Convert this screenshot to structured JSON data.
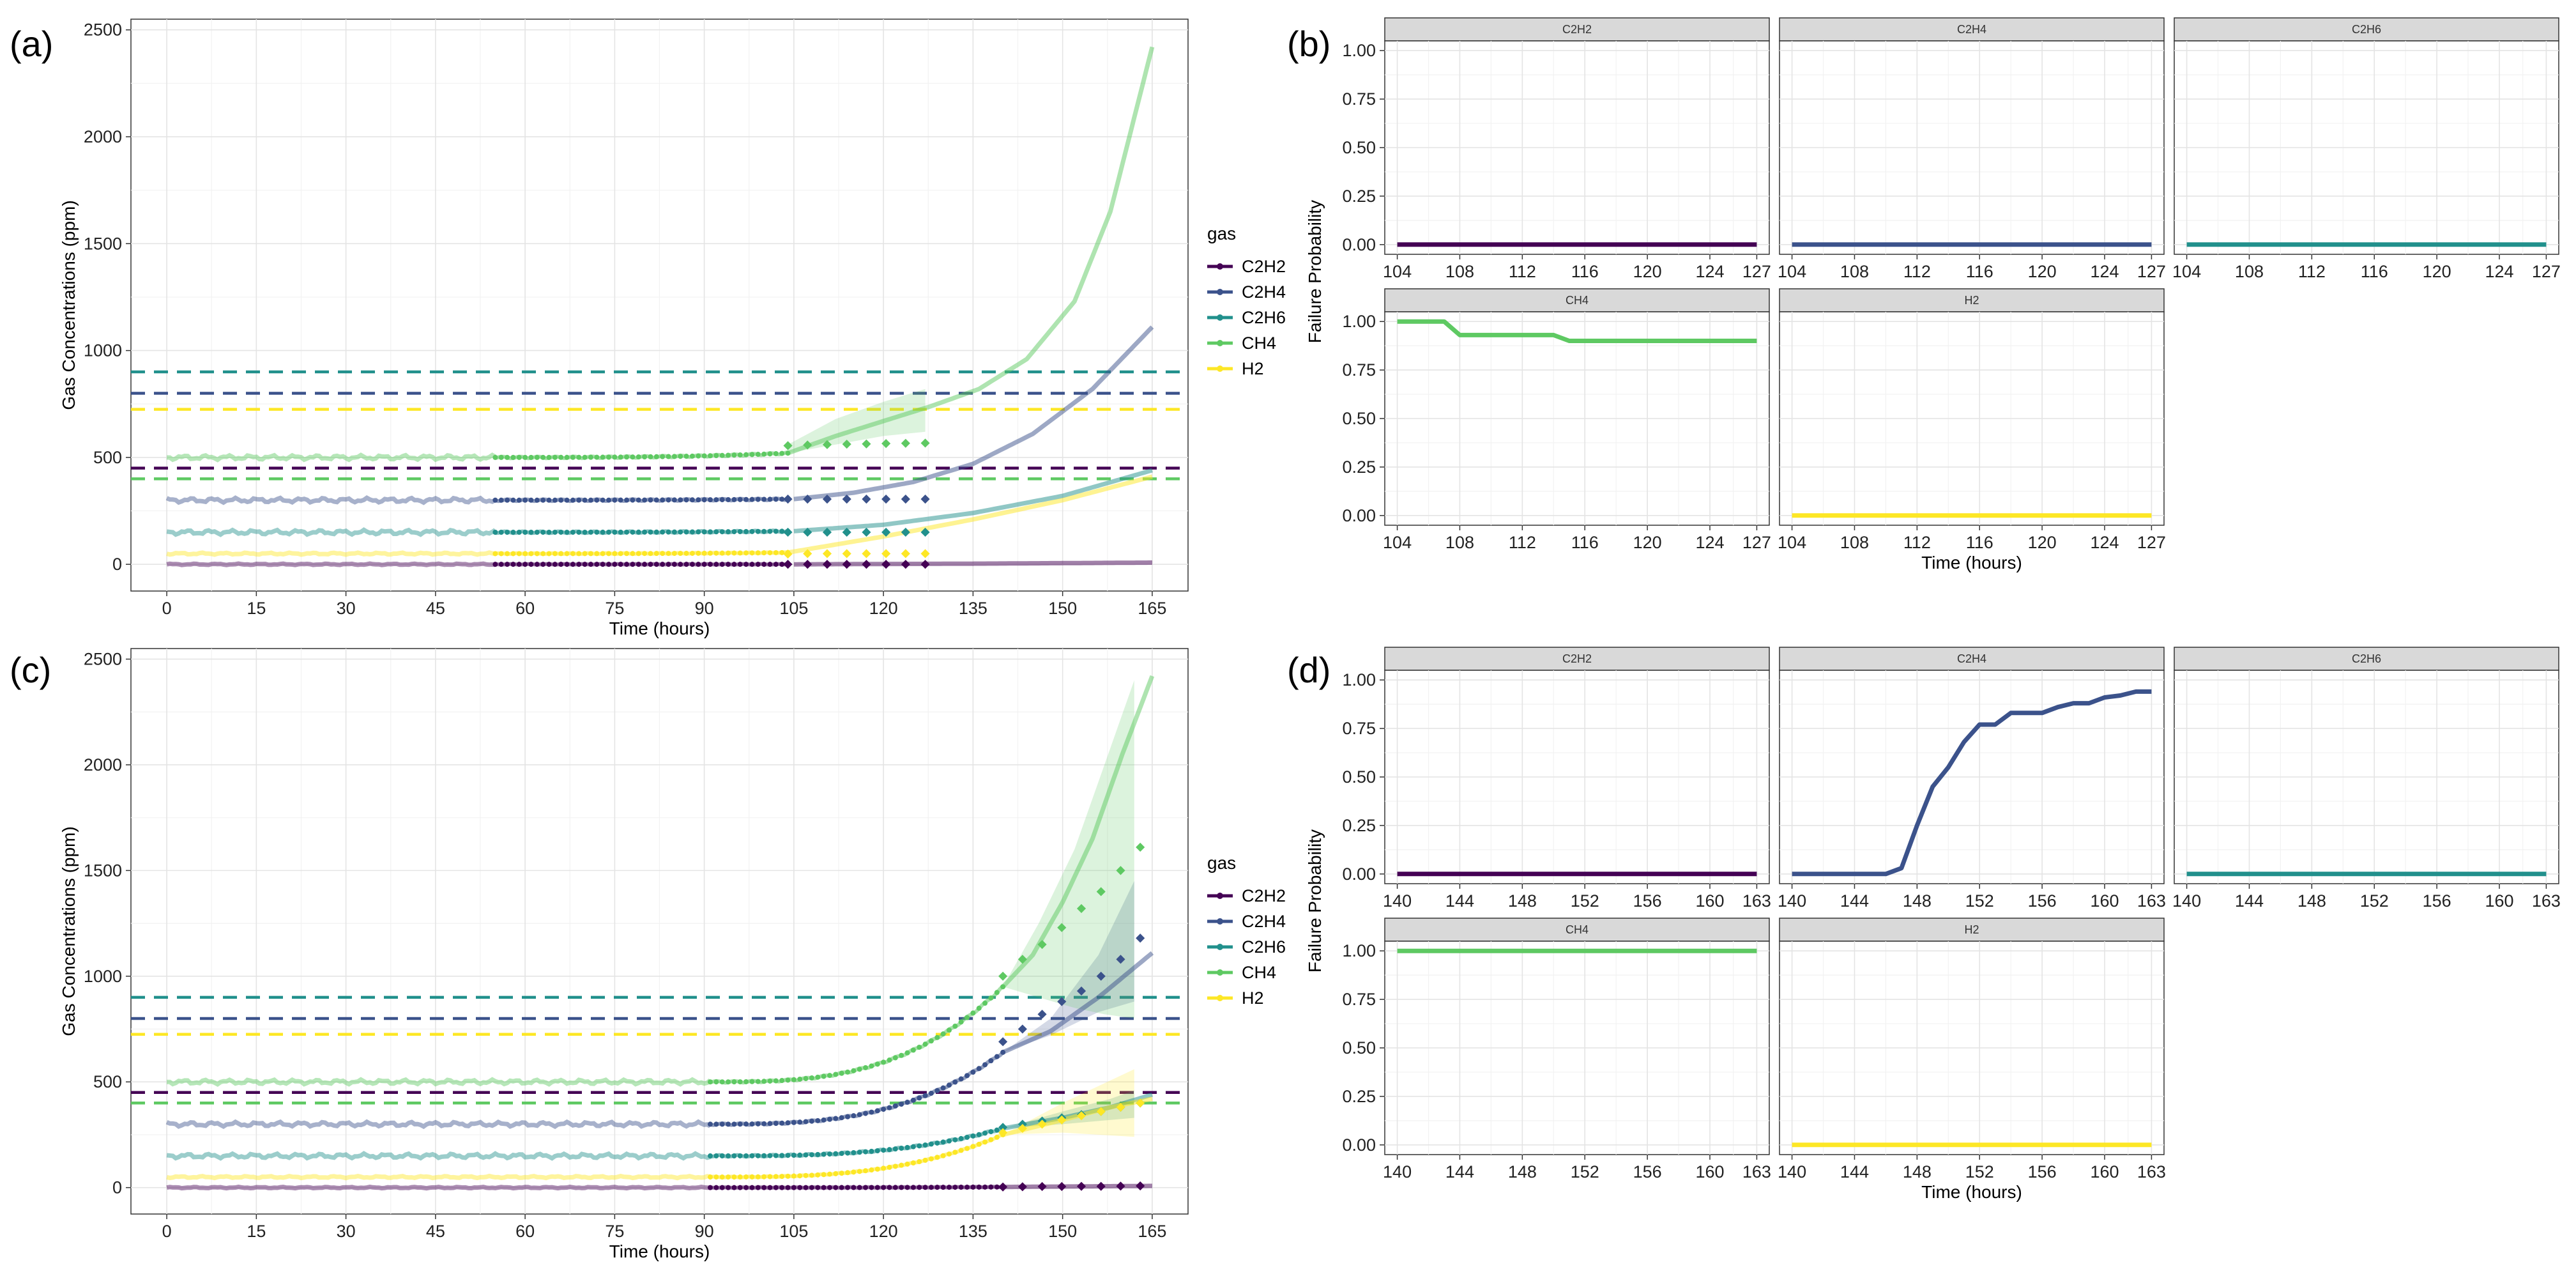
{
  "gases": [
    "C2H2",
    "C2H4",
    "C2H6",
    "CH4",
    "H2"
  ],
  "colors": {
    "C2H2": "#440154",
    "C2H4": "#3b528b",
    "C2H6": "#21908c",
    "CH4": "#5ec962",
    "H2": "#fde725"
  },
  "legend": {
    "title": "gas"
  },
  "chart_data": [
    {
      "panel": "(a)",
      "type": "line",
      "title": "",
      "xlabel": "Time (hours)",
      "ylabel": "Gas Concentrations (ppm)",
      "xlim": [
        -6,
        171
      ],
      "ylim": [
        -125,
        2550
      ],
      "xticks": [
        0,
        15,
        30,
        45,
        60,
        75,
        90,
        105,
        120,
        135,
        150,
        165
      ],
      "yticks": [
        0,
        500,
        1000,
        1500,
        2000,
        2500
      ],
      "grid": true,
      "legend_position": "right",
      "thresholds": [
        {
          "gas": "C2H6",
          "value": 900
        },
        {
          "gas": "C2H4",
          "value": 800
        },
        {
          "gas": "H2",
          "value": 725
        },
        {
          "gas": "C2H2",
          "value": 450
        },
        {
          "gas": "CH4",
          "value": 400
        }
      ],
      "history_end": 55,
      "observed_range": [
        55,
        104
      ],
      "forecast_start": 104,
      "forecast_points_end": 127,
      "series": [
        {
          "name": "C2H2",
          "baseline": 0,
          "fit": [
            [
              105,
              0
            ],
            [
              135,
              3
            ],
            [
              165,
              8
            ]
          ],
          "forecast_points": [
            0,
            0,
            0,
            0,
            0,
            0,
            0,
            0
          ],
          "band": []
        },
        {
          "name": "C2H4",
          "baseline": 300,
          "fit": [
            [
              105,
              305
            ],
            [
              115,
              335
            ],
            [
              125,
              385
            ],
            [
              135,
              470
            ],
            [
              145,
              610
            ],
            [
              155,
              820
            ],
            [
              165,
              1110
            ]
          ],
          "forecast_points": [
            305,
            305,
            305,
            305,
            305,
            305,
            305,
            305
          ],
          "band": []
        },
        {
          "name": "C2H6",
          "baseline": 150,
          "fit": [
            [
              105,
              155
            ],
            [
              120,
              185
            ],
            [
              135,
              240
            ],
            [
              150,
              320
            ],
            [
              165,
              440
            ]
          ],
          "forecast_points": [
            150,
            150,
            150,
            150,
            150,
            150,
            150,
            150
          ],
          "band": []
        },
        {
          "name": "CH4",
          "baseline": 500,
          "fit": [
            [
              104,
              520
            ],
            [
              112,
              600
            ],
            [
              120,
              670
            ],
            [
              128,
              740
            ],
            [
              136,
              820
            ],
            [
              144,
              960
            ],
            [
              152,
              1230
            ],
            [
              158,
              1650
            ],
            [
              165,
              2420
            ]
          ],
          "forecast_points": [
            555,
            558,
            560,
            562,
            563,
            565,
            566,
            567
          ],
          "band": [
            [
              104,
              520,
              560
            ],
            [
              112,
              560,
              680
            ],
            [
              120,
              600,
              760
            ],
            [
              127,
              620,
              820
            ]
          ]
        },
        {
          "name": "H2",
          "baseline": 50,
          "fit": [
            [
              104,
              55
            ],
            [
              120,
              130
            ],
            [
              135,
              210
            ],
            [
              150,
              300
            ],
            [
              165,
              410
            ]
          ],
          "forecast_points": [
            48,
            50,
            50,
            50,
            50,
            50,
            50,
            50
          ],
          "band": []
        }
      ]
    },
    {
      "panel": "(c)",
      "type": "line",
      "title": "",
      "xlabel": "Time (hours)",
      "ylabel": "Gas Concentrations (ppm)",
      "xlim": [
        -6,
        171
      ],
      "ylim": [
        -125,
        2550
      ],
      "xticks": [
        0,
        15,
        30,
        45,
        60,
        75,
        90,
        105,
        120,
        135,
        150,
        165
      ],
      "yticks": [
        0,
        500,
        1000,
        1500,
        2000,
        2500
      ],
      "grid": true,
      "legend_position": "right",
      "thresholds": [
        {
          "gas": "C2H6",
          "value": 900
        },
        {
          "gas": "C2H4",
          "value": 800
        },
        {
          "gas": "H2",
          "value": 725
        },
        {
          "gas": "C2H2",
          "value": 450
        },
        {
          "gas": "CH4",
          "value": 400
        }
      ],
      "history_end": 91,
      "observed_range": [
        91,
        140
      ],
      "forecast_start": 140,
      "forecast_points_end": 163,
      "series": [
        {
          "name": "C2H2",
          "baseline": 0,
          "fit": [
            [
              140,
              3
            ],
            [
              165,
              8
            ]
          ],
          "forecast_points": [
            3,
            4,
            5,
            5,
            6,
            6,
            7,
            8
          ],
          "band": []
        },
        {
          "name": "C2H4",
          "baseline": 300,
          "fit": [
            [
              140,
              640
            ],
            [
              148,
              740
            ],
            [
              156,
              900
            ],
            [
              165,
              1110
            ]
          ],
          "forecast_points": [
            690,
            750,
            820,
            880,
            930,
            1000,
            1080,
            1180
          ],
          "band": [
            [
              140,
              640,
              640
            ],
            [
              148,
              720,
              800
            ],
            [
              156,
              830,
              1100
            ],
            [
              162,
              880,
              1450
            ]
          ]
        },
        {
          "name": "C2H6",
          "baseline": 150,
          "fit": [
            [
              140,
              280
            ],
            [
              150,
              330
            ],
            [
              158,
              380
            ],
            [
              165,
              440
            ]
          ],
          "forecast_points": [
            285,
            300,
            315,
            330,
            345,
            360,
            380,
            400
          ],
          "band": [
            [
              140,
              280,
              280
            ],
            [
              150,
              300,
              360
            ],
            [
              158,
              320,
              420
            ],
            [
              162,
              330,
              460
            ]
          ]
        },
        {
          "name": "CH4",
          "baseline": 500,
          "fit": [
            [
              140,
              950
            ],
            [
              145,
              1100
            ],
            [
              150,
              1350
            ],
            [
              155,
              1650
            ],
            [
              160,
              2050
            ],
            [
              165,
              2420
            ]
          ],
          "forecast_points": [
            1000,
            1080,
            1150,
            1230,
            1320,
            1400,
            1500,
            1610
          ],
          "band": [
            [
              140,
              950,
              950
            ],
            [
              146,
              900,
              1250
            ],
            [
              152,
              850,
              1600
            ],
            [
              157,
              820,
              2000
            ],
            [
              162,
              800,
              2400
            ]
          ]
        },
        {
          "name": "H2",
          "baseline": 50,
          "fit": [
            [
              140,
              250
            ],
            [
              150,
              320
            ],
            [
              158,
              380
            ],
            [
              165,
              420
            ]
          ],
          "forecast_points": [
            260,
            280,
            300,
            320,
            340,
            360,
            380,
            400
          ],
          "band": [
            [
              140,
              250,
              250
            ],
            [
              150,
              260,
              400
            ],
            [
              156,
              250,
              480
            ],
            [
              162,
              240,
              560
            ]
          ]
        }
      ]
    },
    {
      "panel": "(b)",
      "type": "line",
      "facets": [
        "C2H2",
        "C2H4",
        "C2H6",
        "CH4",
        "H2"
      ],
      "xlabel": "Time (hours)",
      "ylabel": "Failure Probability",
      "xlim": [
        103.2,
        127.8
      ],
      "ylim": [
        -0.05,
        1.05
      ],
      "xticks": [
        104,
        108,
        112,
        116,
        120,
        124,
        127
      ],
      "yticks": [
        0.0,
        0.25,
        0.5,
        0.75,
        1.0
      ],
      "ytick_labels": [
        "0.00",
        "0.25",
        "0.50",
        "0.75",
        "1.00"
      ],
      "series": [
        {
          "name": "C2H2",
          "x": [
            104,
            127
          ],
          "y": [
            0,
            0
          ]
        },
        {
          "name": "C2H4",
          "x": [
            104,
            127
          ],
          "y": [
            0,
            0
          ]
        },
        {
          "name": "C2H6",
          "x": [
            104,
            127
          ],
          "y": [
            0,
            0
          ]
        },
        {
          "name": "CH4",
          "x": [
            104,
            107,
            108,
            114,
            115,
            127
          ],
          "y": [
            1.0,
            1.0,
            0.93,
            0.93,
            0.9,
            0.9
          ]
        },
        {
          "name": "H2",
          "x": [
            104,
            127
          ],
          "y": [
            0,
            0
          ]
        }
      ]
    },
    {
      "panel": "(d)",
      "type": "line",
      "facets": [
        "C2H2",
        "C2H4",
        "C2H6",
        "CH4",
        "H2"
      ],
      "xlabel": "Time (hours)",
      "ylabel": "Failure Probability",
      "xlim": [
        139.2,
        163.8
      ],
      "ylim": [
        -0.05,
        1.05
      ],
      "xticks": [
        140,
        144,
        148,
        152,
        156,
        160,
        163
      ],
      "yticks": [
        0.0,
        0.25,
        0.5,
        0.75,
        1.0
      ],
      "ytick_labels": [
        "0.00",
        "0.25",
        "0.50",
        "0.75",
        "1.00"
      ],
      "series": [
        {
          "name": "C2H2",
          "x": [
            140,
            163
          ],
          "y": [
            0,
            0
          ]
        },
        {
          "name": "C2H4",
          "x": [
            140,
            146,
            147,
            148,
            149,
            150,
            151,
            152,
            153,
            154,
            155,
            156,
            157,
            158,
            159,
            160,
            161,
            162,
            163
          ],
          "y": [
            0,
            0,
            0.03,
            0.25,
            0.45,
            0.55,
            0.68,
            0.77,
            0.77,
            0.83,
            0.83,
            0.83,
            0.86,
            0.88,
            0.88,
            0.91,
            0.92,
            0.94,
            0.94
          ]
        },
        {
          "name": "C2H6",
          "x": [
            140,
            163
          ],
          "y": [
            0,
            0
          ]
        },
        {
          "name": "CH4",
          "x": [
            140,
            163
          ],
          "y": [
            1.0,
            1.0
          ]
        },
        {
          "name": "H2",
          "x": [
            140,
            163
          ],
          "y": [
            0,
            0
          ]
        }
      ]
    }
  ]
}
